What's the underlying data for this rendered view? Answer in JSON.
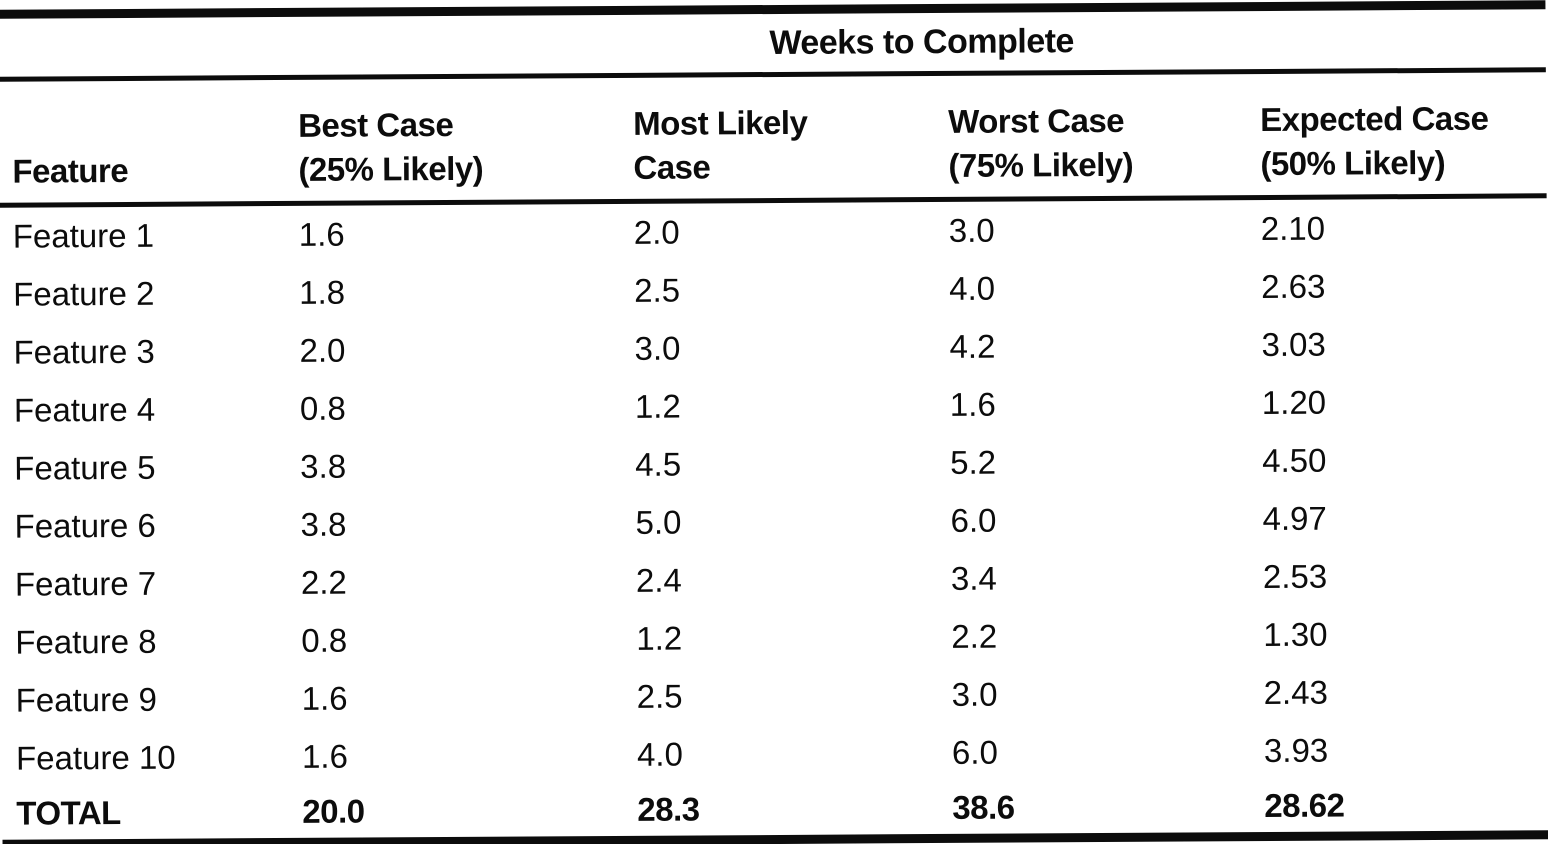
{
  "table": {
    "spanner": "Weeks to Complete",
    "columns": {
      "feature": "Feature",
      "best": "Best Case\n(25% Likely)",
      "likely": "Most Likely\nCase",
      "worst": "Worst Case\n(75% Likely)",
      "expected": "Expected Case\n(50% Likely)"
    },
    "rows": [
      {
        "feature": "Feature 1",
        "best": "1.6",
        "likely": "2.0",
        "worst": "3.0",
        "expected": "2.10"
      },
      {
        "feature": "Feature 2",
        "best": "1.8",
        "likely": "2.5",
        "worst": "4.0",
        "expected": "2.63"
      },
      {
        "feature": "Feature 3",
        "best": "2.0",
        "likely": "3.0",
        "worst": "4.2",
        "expected": "3.03"
      },
      {
        "feature": "Feature 4",
        "best": "0.8",
        "likely": "1.2",
        "worst": "1.6",
        "expected": "1.20"
      },
      {
        "feature": "Feature 5",
        "best": "3.8",
        "likely": "4.5",
        "worst": "5.2",
        "expected": "4.50"
      },
      {
        "feature": "Feature 6",
        "best": "3.8",
        "likely": "5.0",
        "worst": "6.0",
        "expected": "4.97"
      },
      {
        "feature": "Feature 7",
        "best": "2.2",
        "likely": "2.4",
        "worst": "3.4",
        "expected": "2.53"
      },
      {
        "feature": "Feature 8",
        "best": "0.8",
        "likely": "1.2",
        "worst": "2.2",
        "expected": "1.30"
      },
      {
        "feature": "Feature 9",
        "best": "1.6",
        "likely": "2.5",
        "worst": "3.0",
        "expected": "2.43"
      },
      {
        "feature": "Feature 10",
        "best": "1.6",
        "likely": "4.0",
        "worst": "6.0",
        "expected": "3.93"
      }
    ],
    "total": {
      "feature": "TOTAL",
      "best": "20.0",
      "likely": "28.3",
      "worst": "38.6",
      "expected": "28.62"
    }
  },
  "colors": {
    "ink": "#0c0c0c",
    "paper": "#ffffff"
  }
}
